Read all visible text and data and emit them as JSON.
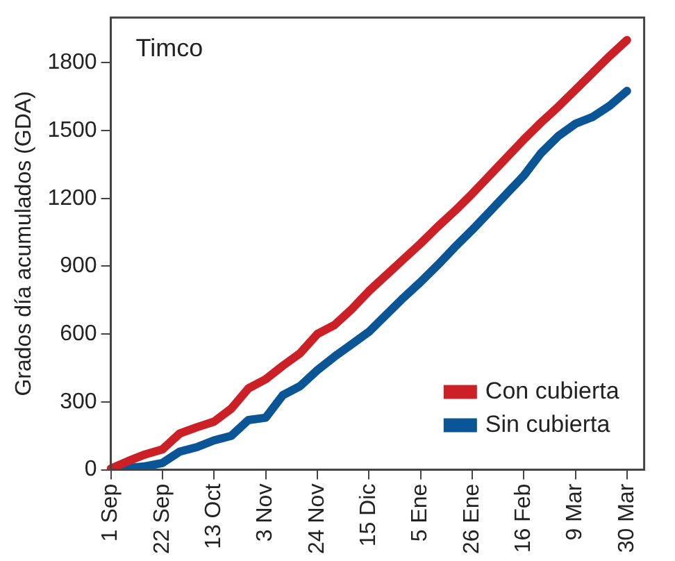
{
  "chart_data": {
    "type": "line",
    "ylabel": "Grados día acumulados (GDA)",
    "annotations": [
      "Timco"
    ],
    "categories": [
      "1 Sep",
      null,
      null,
      "22 Sep",
      null,
      null,
      "13 Oct",
      null,
      null,
      "3 Nov",
      null,
      null,
      "24 Nov",
      null,
      null,
      "15 Dic",
      null,
      null,
      "5 Ene",
      null,
      null,
      "26 Ene",
      null,
      null,
      "16 Feb",
      null,
      null,
      "9 Mar",
      null,
      null,
      "30 Mar",
      null
    ],
    "ylim": [
      0,
      2000
    ],
    "yticks": [
      0,
      300,
      600,
      900,
      1200,
      1500,
      1800
    ],
    "grid": false,
    "legend": "bottom right",
    "marker": "none",
    "line_style": "solid",
    "series": [
      {
        "name": "Con cubierta",
        "color": "#cc2027",
        "values": [
          5,
          38,
          68,
          90,
          160,
          188,
          213,
          270,
          360,
          400,
          460,
          515,
          600,
          640,
          710,
          790,
          860,
          930,
          1000,
          1075,
          1145,
          1220,
          1300,
          1380,
          1460,
          1535,
          1605,
          1680,
          1755,
          1830,
          1900,
          null
        ]
      },
      {
        "name": "Sin cubierta",
        "color": "#0a5596",
        "values": [
          0,
          8,
          15,
          30,
          80,
          100,
          130,
          150,
          220,
          230,
          330,
          370,
          440,
          500,
          555,
          610,
          685,
          760,
          830,
          905,
          985,
          1060,
          1140,
          1220,
          1300,
          1400,
          1475,
          1530,
          1560,
          1610,
          1675,
          null
        ]
      }
    ]
  }
}
